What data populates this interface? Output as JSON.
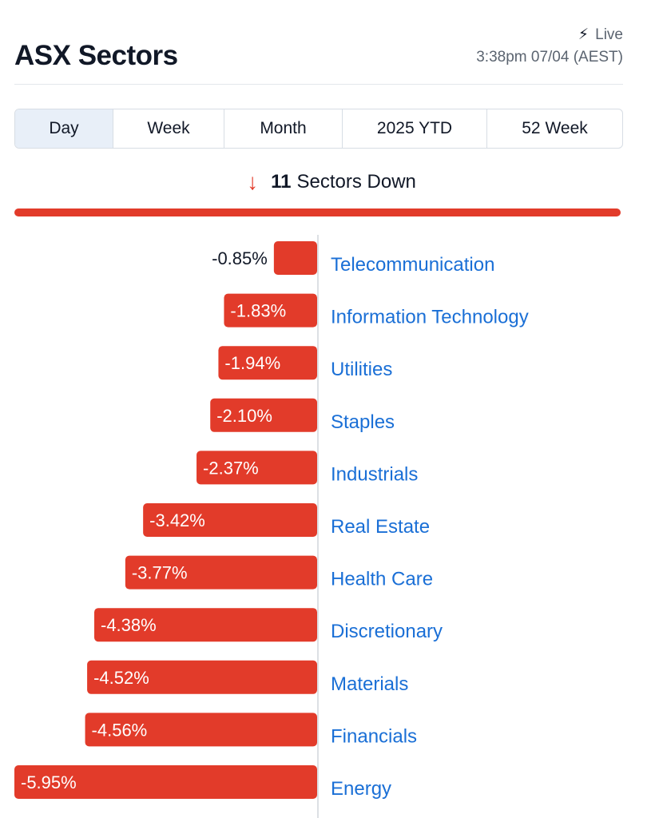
{
  "header": {
    "title": "ASX Sectors",
    "live_label": "Live",
    "live_icon": "lightning-bolt-icon",
    "timestamp": "3:38pm 07/04 (AEST)"
  },
  "tabs": [
    {
      "label": "Day",
      "active": true
    },
    {
      "label": "Week",
      "active": false
    },
    {
      "label": "Month",
      "active": false
    },
    {
      "label": "2025 YTD",
      "active": false
    },
    {
      "label": "52 Week",
      "active": false
    }
  ],
  "summary": {
    "icon": "arrow-down-icon",
    "count": "11",
    "text": "Sectors Down",
    "color": "#e23b2a"
  },
  "chart_data": {
    "type": "bar",
    "orientation": "horizontal",
    "categories": [
      "Telecommunication",
      "Information Technology",
      "Utilities",
      "Staples",
      "Industrials",
      "Real Estate",
      "Health Care",
      "Discretionary",
      "Materials",
      "Financials",
      "Energy"
    ],
    "values": [
      -0.85,
      -1.83,
      -1.94,
      -2.1,
      -2.37,
      -3.42,
      -3.77,
      -4.38,
      -4.52,
      -4.56,
      -5.95
    ],
    "labels": [
      "-0.85%",
      "-1.83%",
      "-1.94%",
      "-2.10%",
      "-2.37%",
      "-3.42%",
      "-3.77%",
      "-4.38%",
      "-4.52%",
      "-4.56%",
      "-5.95%"
    ],
    "unit": "%",
    "xlim": [
      -5.95,
      0
    ],
    "bar_color": "#e23b2a",
    "category_label_color": "#1a6fd6",
    "title": "",
    "xlabel": "",
    "ylabel": ""
  }
}
